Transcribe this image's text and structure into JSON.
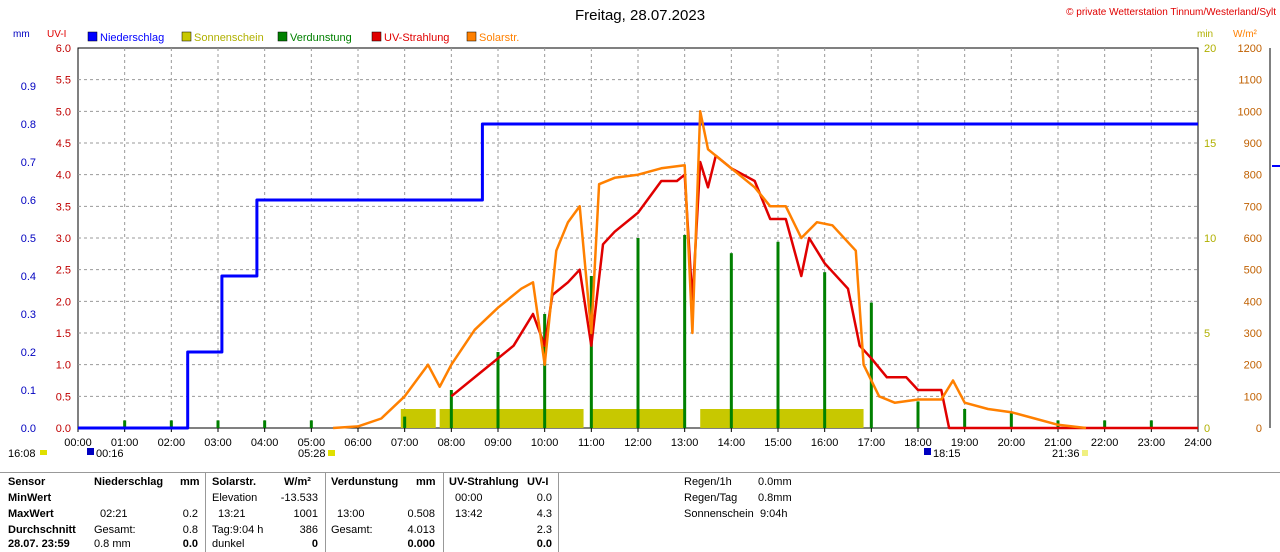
{
  "header": {
    "title": "Freitag, 28.07.2023",
    "copyright": "© private Wetterstation Tinnum/Westerland/Sylt"
  },
  "axes": {
    "left1_unit": "mm",
    "left2_unit": "UV-I",
    "right1_unit": "min",
    "right2_unit": "W/m²",
    "mm_ticks": [
      "0.0",
      "0.1",
      "0.2",
      "0.3",
      "0.4",
      "0.5",
      "0.6",
      "0.7",
      "0.8",
      "0.9"
    ],
    "uv_ticks": [
      "0.0",
      "0.5",
      "1.0",
      "1.5",
      "2.0",
      "2.5",
      "3.0",
      "3.5",
      "4.0",
      "4.5",
      "5.0",
      "5.5",
      "6.0"
    ],
    "min_ticks": [
      "0",
      "5",
      "10",
      "15",
      "20"
    ],
    "wm2_ticks": [
      "0",
      "100",
      "200",
      "300",
      "400",
      "500",
      "600",
      "700",
      "800",
      "900",
      "1000",
      "1100",
      "1200"
    ],
    "x_ticks": [
      "00:00",
      "01:00",
      "02:00",
      "03:00",
      "04:00",
      "05:00",
      "06:00",
      "07:00",
      "08:00",
      "09:00",
      "10:00",
      "11:00",
      "12:00",
      "13:00",
      "14:00",
      "15:00",
      "16:00",
      "17:00",
      "18:00",
      "19:00",
      "20:00",
      "21:00",
      "22:00",
      "23:00",
      "24:00"
    ]
  },
  "legend": [
    {
      "label": "Niederschlag",
      "color": "#0000ff"
    },
    {
      "label": "Sonnenschein",
      "color": "#c8c800"
    },
    {
      "label": "Verdunstung",
      "color": "#008000"
    },
    {
      "label": "UV-Strahlung",
      "color": "#e00000"
    },
    {
      "label": "Solarstr.",
      "color": "#ff8000"
    }
  ],
  "sun_markers": {
    "moonset": "16:08",
    "moonrise": "00:16",
    "sunrise": "05:28",
    "moon2": "18:15",
    "sunset": "21:36"
  },
  "chart_data": {
    "type": "line",
    "x_label": "",
    "x_range": [
      "00:00",
      "24:00"
    ],
    "series": [
      {
        "name": "Niederschlag",
        "unit": "mm",
        "y_range": [
          0,
          1.0
        ],
        "color": "#0000ff",
        "step": true,
        "points": [
          [
            "00:00",
            0.0
          ],
          [
            "02:21",
            0.0
          ],
          [
            "02:21",
            0.2
          ],
          [
            "03:05",
            0.2
          ],
          [
            "03:05",
            0.4
          ],
          [
            "03:50",
            0.4
          ],
          [
            "03:50",
            0.6
          ],
          [
            "08:40",
            0.6
          ],
          [
            "08:40",
            0.8
          ],
          [
            "24:00",
            0.8
          ]
        ]
      },
      {
        "name": "UV-Strahlung",
        "unit": "UV-I",
        "y_range": [
          0,
          6.0
        ],
        "color": "#e00000",
        "points": [
          [
            "08:00",
            0.5
          ],
          [
            "08:40",
            0.9
          ],
          [
            "09:20",
            1.3
          ],
          [
            "09:45",
            1.8
          ],
          [
            "10:00",
            1.3
          ],
          [
            "10:10",
            2.1
          ],
          [
            "10:30",
            2.3
          ],
          [
            "10:45",
            2.5
          ],
          [
            "11:00",
            1.3
          ],
          [
            "11:15",
            2.9
          ],
          [
            "11:30",
            3.1
          ],
          [
            "12:00",
            3.4
          ],
          [
            "12:30",
            3.9
          ],
          [
            "12:50",
            3.9
          ],
          [
            "13:00",
            4.0
          ],
          [
            "13:10",
            2.0
          ],
          [
            "13:20",
            4.2
          ],
          [
            "13:30",
            3.8
          ],
          [
            "13:40",
            4.3
          ],
          [
            "14:00",
            4.1
          ],
          [
            "14:30",
            3.9
          ],
          [
            "14:50",
            3.3
          ],
          [
            "15:10",
            3.3
          ],
          [
            "15:30",
            2.4
          ],
          [
            "15:40",
            3.0
          ],
          [
            "16:00",
            2.6
          ],
          [
            "16:30",
            2.2
          ],
          [
            "16:45",
            1.3
          ],
          [
            "17:00",
            1.1
          ],
          [
            "17:20",
            0.8
          ],
          [
            "17:45",
            0.8
          ],
          [
            "18:00",
            0.6
          ],
          [
            "18:30",
            0.6
          ],
          [
            "18:40",
            0.0
          ],
          [
            "24:00",
            0.0
          ]
        ]
      },
      {
        "name": "Solarstr.",
        "unit": "W/m²",
        "y_range": [
          0,
          1200
        ],
        "color": "#ff8000",
        "points": [
          [
            "05:28",
            0
          ],
          [
            "06:00",
            5
          ],
          [
            "06:30",
            30
          ],
          [
            "07:00",
            100
          ],
          [
            "07:30",
            200
          ],
          [
            "07:45",
            130
          ],
          [
            "08:00",
            200
          ],
          [
            "08:30",
            310
          ],
          [
            "09:00",
            380
          ],
          [
            "09:30",
            440
          ],
          [
            "09:45",
            460
          ],
          [
            "10:00",
            200
          ],
          [
            "10:15",
            560
          ],
          [
            "10:30",
            650
          ],
          [
            "10:45",
            700
          ],
          [
            "11:00",
            300
          ],
          [
            "11:10",
            770
          ],
          [
            "11:30",
            790
          ],
          [
            "12:00",
            800
          ],
          [
            "12:30",
            820
          ],
          [
            "13:00",
            830
          ],
          [
            "13:10",
            300
          ],
          [
            "13:20",
            1000
          ],
          [
            "13:30",
            880
          ],
          [
            "14:00",
            820
          ],
          [
            "14:30",
            760
          ],
          [
            "14:50",
            700
          ],
          [
            "15:10",
            700
          ],
          [
            "15:30",
            600
          ],
          [
            "15:50",
            650
          ],
          [
            "16:10",
            640
          ],
          [
            "16:40",
            560
          ],
          [
            "16:50",
            200
          ],
          [
            "17:10",
            100
          ],
          [
            "17:30",
            80
          ],
          [
            "18:00",
            90
          ],
          [
            "18:30",
            90
          ],
          [
            "18:45",
            150
          ],
          [
            "19:00",
            80
          ],
          [
            "19:30",
            60
          ],
          [
            "20:00",
            50
          ],
          [
            "20:30",
            30
          ],
          [
            "21:00",
            10
          ],
          [
            "21:36",
            0
          ]
        ]
      },
      {
        "name": "Sonnenschein",
        "unit": "min",
        "y_range": [
          0,
          20
        ],
        "color": "#c8c800",
        "bars": [
          [
            "06:55",
            "07:40",
            1.0
          ],
          [
            "07:45",
            "10:50",
            1.0
          ],
          [
            "11:00",
            "13:00",
            1.0
          ],
          [
            "13:20",
            "16:50",
            1.0
          ]
        ]
      },
      {
        "name": "Verdunstung",
        "unit": "mm",
        "y_range": [
          0,
          1.0
        ],
        "color": "#008000",
        "bars": [
          [
            "01:00",
            0.02
          ],
          [
            "02:00",
            0.02
          ],
          [
            "03:00",
            0.02
          ],
          [
            "04:00",
            0.02
          ],
          [
            "05:00",
            0.02
          ],
          [
            "07:00",
            0.03
          ],
          [
            "08:00",
            0.1
          ],
          [
            "09:00",
            0.2
          ],
          [
            "10:00",
            0.3
          ],
          [
            "11:00",
            0.4
          ],
          [
            "12:00",
            0.5
          ],
          [
            "13:00",
            0.508
          ],
          [
            "14:00",
            0.46
          ],
          [
            "15:00",
            0.49
          ],
          [
            "16:00",
            0.41
          ],
          [
            "17:00",
            0.33
          ],
          [
            "18:00",
            0.07
          ],
          [
            "19:00",
            0.05
          ],
          [
            "20:00",
            0.04
          ],
          [
            "21:00",
            0.02
          ],
          [
            "22:00",
            0.02
          ],
          [
            "23:00",
            0.02
          ]
        ]
      }
    ]
  },
  "stats": {
    "sensor_col": {
      "h": "Sensor",
      "min": "MinWert",
      "max": "MaxWert",
      "avg": "Durchschnitt",
      "date": "28.07. 23:59"
    },
    "rain": {
      "h": "Niederschlag",
      "unit": "mm",
      "max_time": "02:21",
      "max_val": "0.2",
      "total_label": "Gesamt:",
      "total_val": "0.8",
      "foot_l": "0.8 mm",
      "foot_r": "0.0"
    },
    "solar": {
      "h": "Solarstr.",
      "unit": "W/m²",
      "elev_label": "Elevation",
      "elev_val": "-13.533",
      "max_time": "13:21",
      "max_val": "1001",
      "day_label": "Tag:9:04 h",
      "day_val": "386",
      "foot_l": "dunkel",
      "foot_r": "0"
    },
    "evap": {
      "h": "Verdunstung",
      "unit": "mm",
      "max_time": "13:00",
      "max_val": "0.508",
      "total_label": "Gesamt:",
      "total_val": "4.013",
      "foot_r": "0.000"
    },
    "uv": {
      "h": "UV-Strahlung",
      "unit": "UV-I",
      "min_time": "00:00",
      "min_val": "0.0",
      "max_time": "13:42",
      "max_val": "4.3",
      "avg_val": "2.3",
      "foot_r": "0.0"
    },
    "summary": [
      {
        "label": "Regen/1h",
        "value": "0.0mm"
      },
      {
        "label": "Regen/Tag",
        "value": "0.8mm"
      },
      {
        "label": "Sonnenschein",
        "value": "9:04h"
      }
    ]
  }
}
